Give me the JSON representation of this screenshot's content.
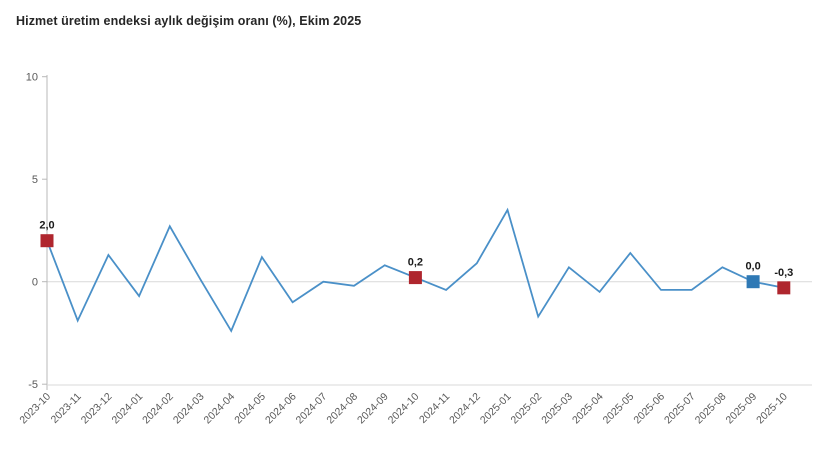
{
  "title": "Hizmet üretim endeksi aylık değişim oranı (%), Ekim 2025",
  "chart_data": {
    "type": "line",
    "title": "Hizmet üretim endeksi aylık değişim oranı (%), Ekim 2025",
    "xlabel": "",
    "ylabel": "",
    "x": [
      "2023-10",
      "2023-11",
      "2023-12",
      "2024-01",
      "2024-02",
      "2024-03",
      "2024-04",
      "2024-05",
      "2024-06",
      "2024-07",
      "2024-08",
      "2024-09",
      "2024-10",
      "2024-11",
      "2024-12",
      "2025-01",
      "2025-02",
      "2025-03",
      "2025-04",
      "2025-05",
      "2025-06",
      "2025-07",
      "2025-08",
      "2025-09",
      "2025-10"
    ],
    "values": [
      2.0,
      -1.9,
      1.3,
      -0.7,
      2.7,
      0.1,
      -2.4,
      1.2,
      -1.0,
      0.0,
      -0.2,
      0.8,
      0.2,
      -0.4,
      0.9,
      3.5,
      -1.7,
      0.7,
      -0.5,
      1.4,
      -0.4,
      -0.4,
      0.7,
      0.0,
      -0.3
    ],
    "ylim": [
      -5,
      10
    ],
    "yticks": [
      10,
      5,
      0,
      -5
    ],
    "grid": "single horizontal gridline at 0",
    "legend": "none",
    "line_color": "#4A90C8",
    "axis_color": "#b8b8b8",
    "gridline_color": "#d9d9d9",
    "tick_label_color": "#595959",
    "point_label_color": "#1a1a1a",
    "marked_points": [
      {
        "x": "2023-10",
        "value": 2.0,
        "label": "2,0",
        "marker_color": "#AF262E"
      },
      {
        "x": "2024-10",
        "value": 0.2,
        "label": "0,2",
        "marker_color": "#AF262E"
      },
      {
        "x": "2025-09",
        "value": 0.0,
        "label": "0,0",
        "marker_color": "#2F79B5"
      },
      {
        "x": "2025-10",
        "value": -0.3,
        "label": "-0,3",
        "marker_color": "#AF262E"
      }
    ]
  }
}
